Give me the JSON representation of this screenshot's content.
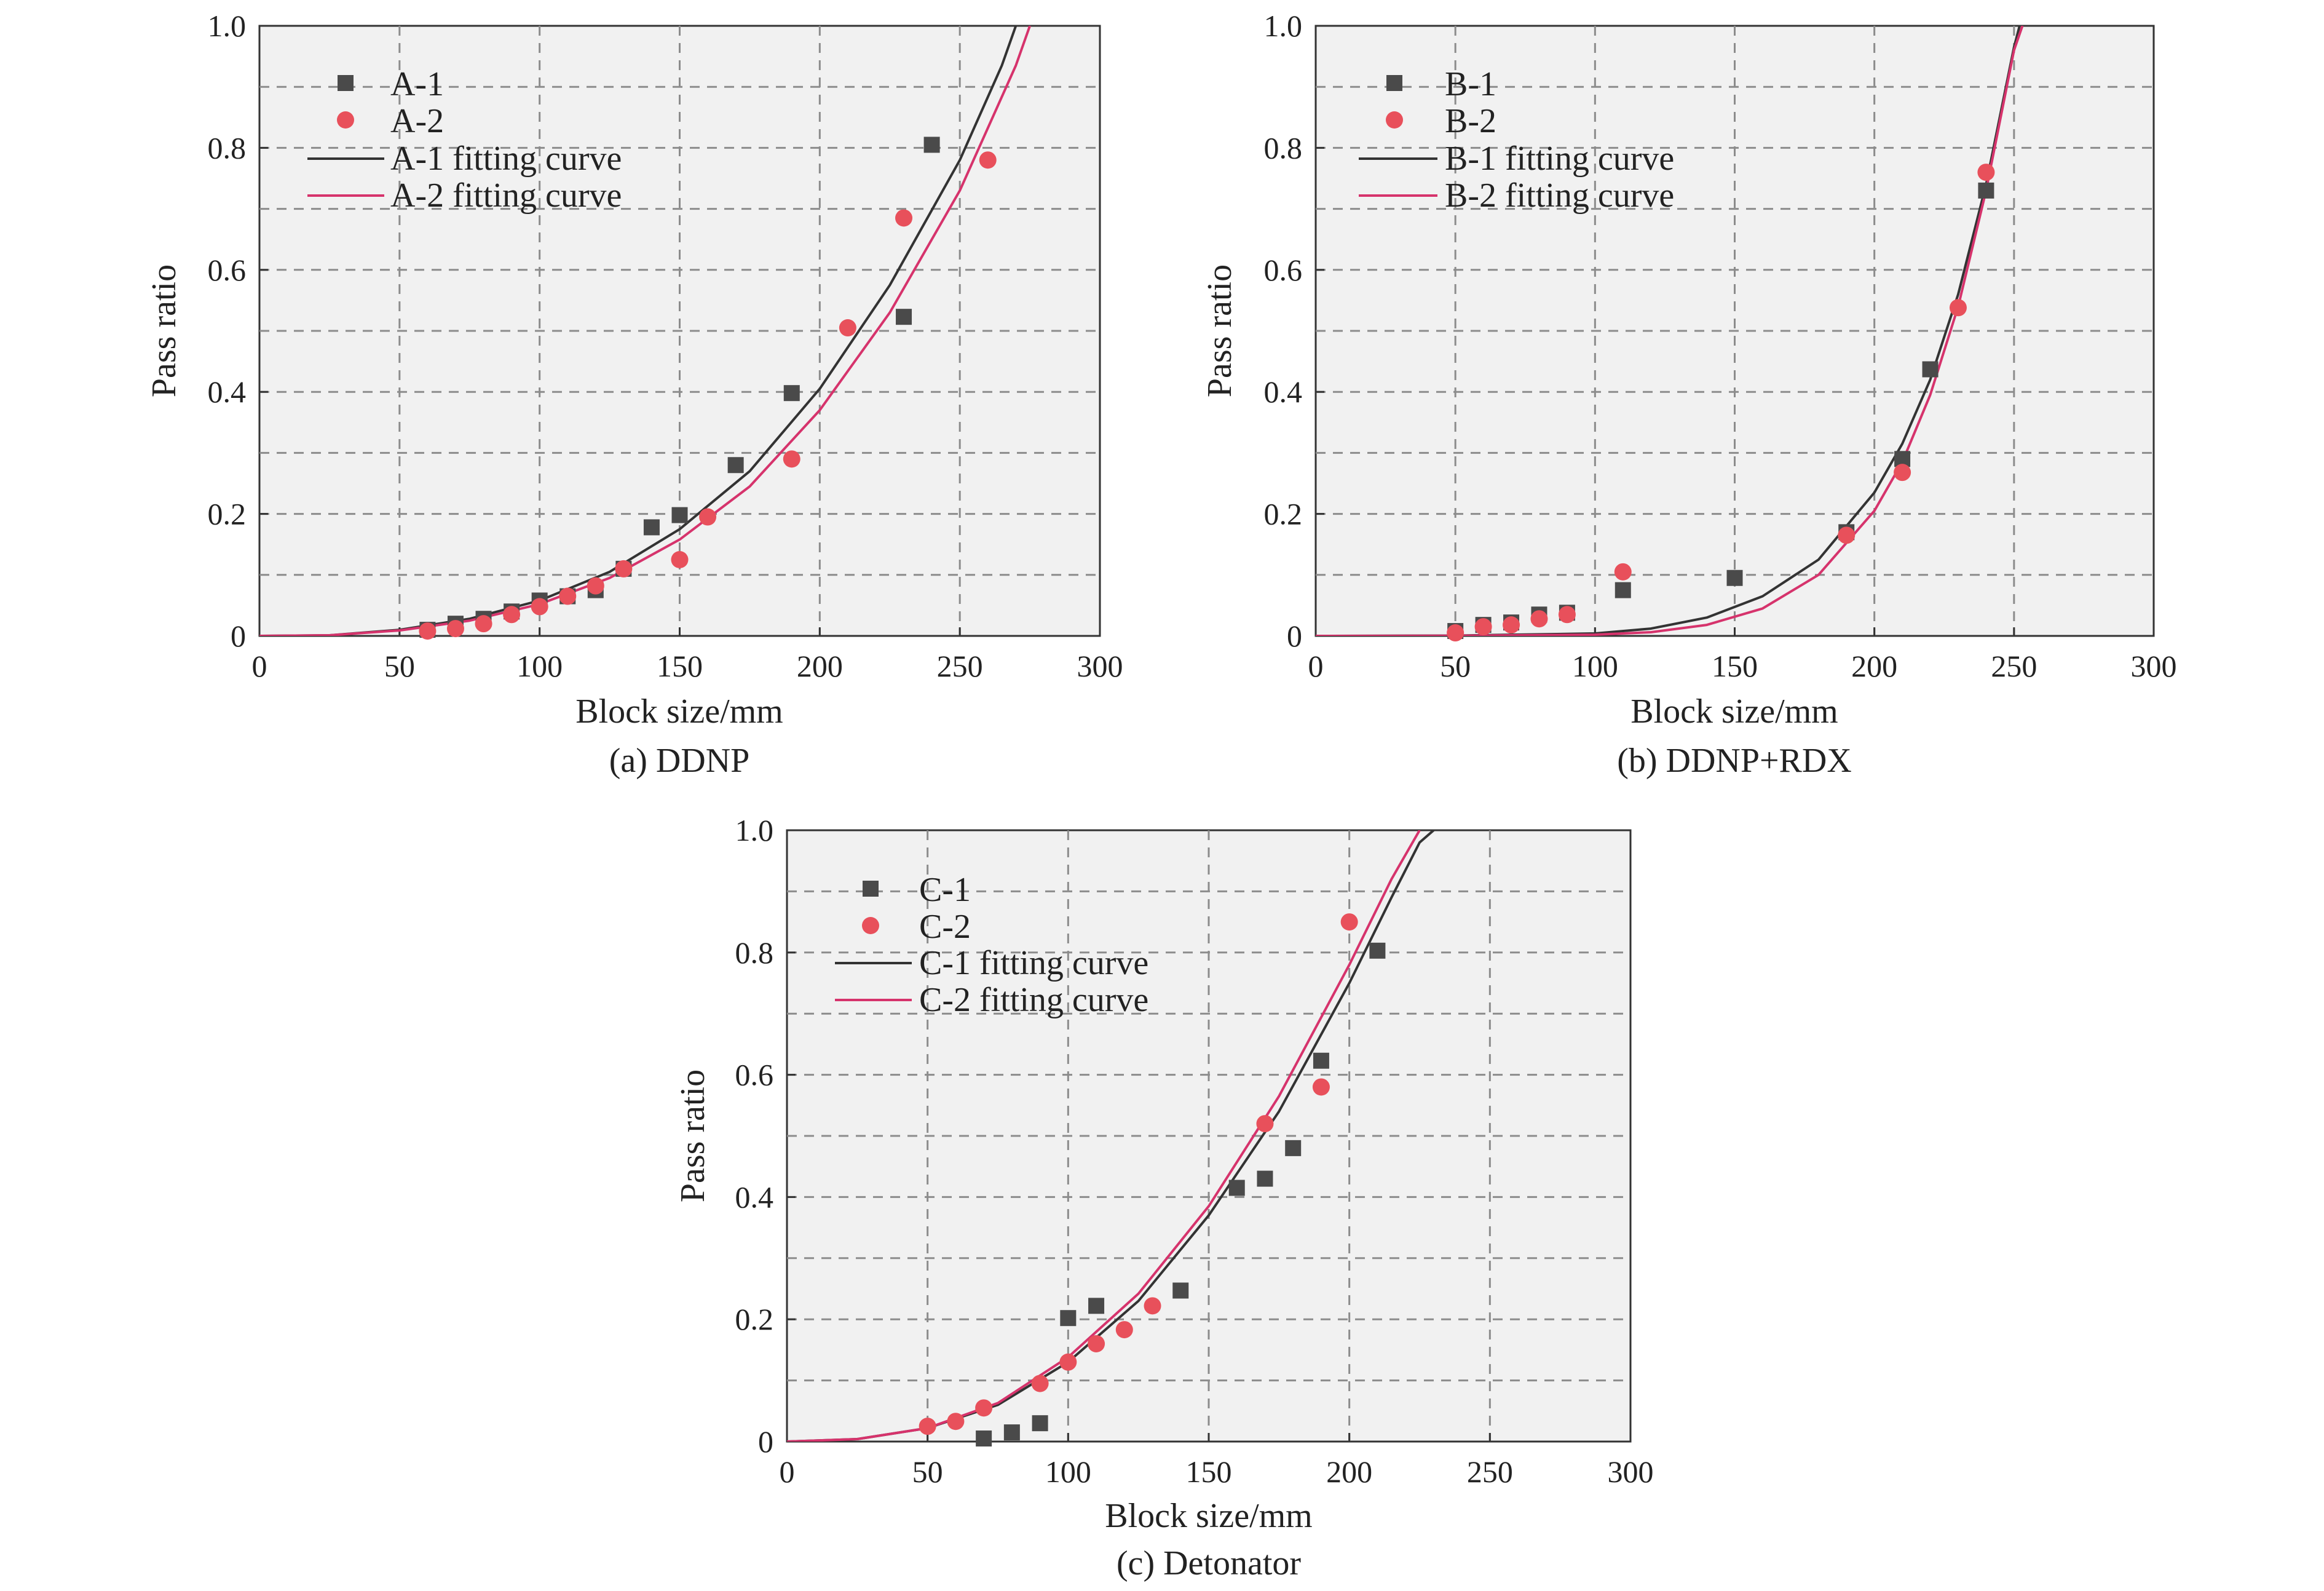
{
  "figure": {
    "panels": [
      {
        "caption": "(a) DDNP",
        "legend": {
          "entries": [
            {
              "label": "A-1",
              "kind": "square",
              "color": "#4a4a4a"
            },
            {
              "label": "A-2",
              "kind": "circle",
              "color": "#e8505b"
            },
            {
              "label": "A-1 fitting curve",
              "kind": "line",
              "color": "#333333"
            },
            {
              "label": "A-2 fitting curve",
              "kind": "line",
              "color": "#d6336c"
            }
          ]
        }
      },
      {
        "caption": "(b) DDNP+RDX",
        "legend": {
          "entries": [
            {
              "label": "B-1",
              "kind": "square",
              "color": "#4a4a4a"
            },
            {
              "label": "B-2",
              "kind": "circle",
              "color": "#e8505b"
            },
            {
              "label": "B-1 fitting curve",
              "kind": "line",
              "color": "#333333"
            },
            {
              "label": "B-2 fitting curve",
              "kind": "line",
              "color": "#d6336c"
            }
          ]
        }
      },
      {
        "caption": "(c) Detonator",
        "legend": {
          "entries": [
            {
              "label": "C-1",
              "kind": "square",
              "color": "#4a4a4a"
            },
            {
              "label": "C-2",
              "kind": "circle",
              "color": "#e8505b"
            },
            {
              "label": "C-1 fitting curve",
              "kind": "line",
              "color": "#333333"
            },
            {
              "label": "C-2 fitting curve",
              "kind": "line",
              "color": "#d6336c"
            }
          ]
        }
      }
    ]
  },
  "chart_data": [
    {
      "type": "scatter",
      "xlabel": "Block size/mm",
      "ylabel": "Pass ratio",
      "xlim": [
        0,
        300
      ],
      "ylim": [
        0,
        1.0
      ],
      "xticks": [
        0,
        50,
        100,
        150,
        200,
        250,
        300
      ],
      "xtick_labels": [
        "0",
        "50",
        "100",
        "150",
        "200",
        "250",
        "300"
      ],
      "yticks": [
        0,
        0.2,
        0.4,
        0.6,
        0.8,
        1.0
      ],
      "ytick_labels": [
        "0",
        "0.2",
        "0.4",
        "0.6",
        "0.8",
        "1.0"
      ],
      "grid": true,
      "legend_position": "top-left",
      "series": [
        {
          "name": "A-1",
          "marker": "square",
          "color": "#4a4a4a",
          "x": [
            60,
            70,
            80,
            90,
            100,
            110,
            120,
            130,
            140,
            150,
            170,
            190,
            230,
            240
          ],
          "y": [
            0.01,
            0.02,
            0.028,
            0.04,
            0.058,
            0.065,
            0.075,
            0.11,
            0.178,
            0.198,
            0.28,
            0.398,
            0.523,
            0.805
          ]
        },
        {
          "name": "A-2",
          "marker": "circle",
          "color": "#e8505b",
          "x": [
            60,
            70,
            80,
            90,
            100,
            110,
            120,
            130,
            150,
            160,
            190,
            210,
            230,
            260
          ],
          "y": [
            0.008,
            0.012,
            0.02,
            0.035,
            0.048,
            0.065,
            0.082,
            0.11,
            0.125,
            0.195,
            0.29,
            0.505,
            0.685,
            0.78
          ]
        },
        {
          "name": "A-1 fitting curve",
          "line": true,
          "color": "#333333",
          "x": [
            0,
            25,
            50,
            75,
            100,
            125,
            150,
            175,
            200,
            225,
            250,
            265,
            270
          ],
          "y": [
            0,
            0.001,
            0.01,
            0.028,
            0.058,
            0.105,
            0.175,
            0.27,
            0.405,
            0.575,
            0.78,
            0.935,
            1.0
          ]
        },
        {
          "name": "A-2 fitting curve",
          "line": true,
          "color": "#d6336c",
          "x": [
            0,
            25,
            50,
            75,
            100,
            125,
            150,
            175,
            200,
            225,
            250,
            270,
            275
          ],
          "y": [
            0,
            0.001,
            0.009,
            0.025,
            0.052,
            0.095,
            0.158,
            0.245,
            0.37,
            0.53,
            0.73,
            0.935,
            1.0
          ]
        }
      ]
    },
    {
      "type": "scatter",
      "xlabel": "Block size/mm",
      "ylabel": "Pass ratio",
      "xlim": [
        0,
        300
      ],
      "ylim": [
        0,
        1.0
      ],
      "xticks": [
        0,
        50,
        100,
        150,
        200,
        250,
        300
      ],
      "xtick_labels": [
        "0",
        "50",
        "100",
        "150",
        "200",
        "250",
        "300"
      ],
      "yticks": [
        0,
        0.2,
        0.4,
        0.6,
        0.8,
        1.0
      ],
      "ytick_labels": [
        "0",
        "0.2",
        "0.4",
        "0.6",
        "0.8",
        "1.0"
      ],
      "grid": true,
      "legend_position": "top-left",
      "series": [
        {
          "name": "B-1",
          "marker": "square",
          "color": "#4a4a4a",
          "x": [
            50,
            60,
            70,
            80,
            90,
            110,
            150,
            190,
            210,
            220,
            240
          ],
          "y": [
            0.008,
            0.018,
            0.022,
            0.035,
            0.038,
            0.075,
            0.095,
            0.17,
            0.29,
            0.437,
            0.73
          ]
        },
        {
          "name": "B-2",
          "marker": "circle",
          "color": "#e8505b",
          "x": [
            50,
            60,
            70,
            80,
            90,
            110,
            190,
            210,
            230,
            240
          ],
          "y": [
            0.005,
            0.015,
            0.018,
            0.028,
            0.035,
            0.105,
            0.165,
            0.268,
            0.538,
            0.76
          ]
        },
        {
          "name": "B-1 fitting curve",
          "line": true,
          "color": "#333333",
          "x": [
            0,
            50,
            100,
            120,
            140,
            160,
            180,
            200,
            210,
            220,
            230,
            240,
            250,
            252
          ],
          "y": [
            0,
            0.0005,
            0.004,
            0.012,
            0.03,
            0.065,
            0.125,
            0.235,
            0.315,
            0.42,
            0.56,
            0.74,
            0.965,
            1.0
          ]
        },
        {
          "name": "B-2 fitting curve",
          "line": true,
          "color": "#d6336c",
          "x": [
            0,
            50,
            100,
            120,
            140,
            160,
            180,
            200,
            210,
            220,
            230,
            240,
            250,
            253
          ],
          "y": [
            0,
            0.0002,
            0.002,
            0.006,
            0.018,
            0.045,
            0.1,
            0.205,
            0.285,
            0.395,
            0.54,
            0.73,
            0.96,
            1.0
          ]
        }
      ]
    },
    {
      "type": "scatter",
      "xlabel": "Block size/mm",
      "ylabel": "Pass ratio",
      "xlim": [
        0,
        300
      ],
      "ylim": [
        0,
        1.0
      ],
      "xticks": [
        0,
        50,
        100,
        150,
        200,
        250,
        300
      ],
      "xtick_labels": [
        "0",
        "50",
        "100",
        "150",
        "200",
        "250",
        "300"
      ],
      "yticks": [
        0,
        0.2,
        0.4,
        0.6,
        0.8,
        1.0
      ],
      "ytick_labels": [
        "0",
        "0.2",
        "0.4",
        "0.6",
        "0.8",
        "1.0"
      ],
      "grid": true,
      "legend_position": "top-left",
      "series": [
        {
          "name": "C-1",
          "marker": "square",
          "color": "#4a4a4a",
          "x": [
            70,
            80,
            90,
            100,
            110,
            140,
            160,
            170,
            180,
            190,
            210
          ],
          "y": [
            0.005,
            0.015,
            0.03,
            0.202,
            0.222,
            0.247,
            0.415,
            0.43,
            0.48,
            0.623,
            0.803
          ]
        },
        {
          "name": "C-2",
          "marker": "circle",
          "color": "#e8505b",
          "x": [
            50,
            60,
            70,
            90,
            100,
            110,
            120,
            130,
            170,
            190,
            200
          ],
          "y": [
            0.025,
            0.033,
            0.055,
            0.095,
            0.13,
            0.16,
            0.183,
            0.222,
            0.52,
            0.58,
            0.85
          ]
        },
        {
          "name": "C-1 fitting curve",
          "line": true,
          "color": "#333333",
          "x": [
            0,
            25,
            50,
            75,
            100,
            125,
            150,
            175,
            200,
            215,
            225,
            230
          ],
          "y": [
            0,
            0.004,
            0.022,
            0.06,
            0.13,
            0.23,
            0.37,
            0.54,
            0.75,
            0.89,
            0.98,
            1.0
          ]
        },
        {
          "name": "C-2 fitting curve",
          "line": true,
          "color": "#d6336c",
          "x": [
            0,
            25,
            50,
            75,
            100,
            125,
            150,
            175,
            200,
            215,
            225
          ],
          "y": [
            0,
            0.004,
            0.022,
            0.063,
            0.138,
            0.242,
            0.385,
            0.565,
            0.78,
            0.92,
            1.0
          ]
        }
      ]
    }
  ]
}
